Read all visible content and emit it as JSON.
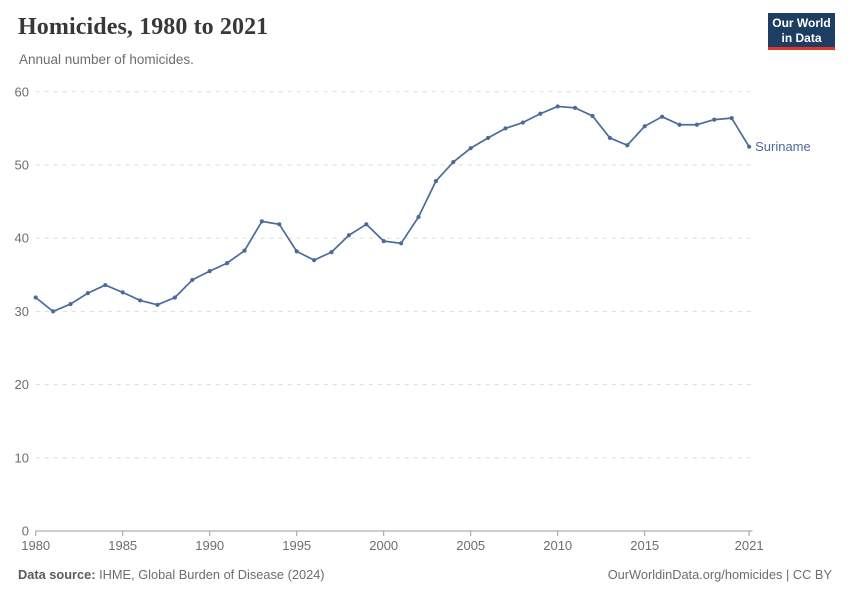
{
  "header": {
    "title": "Homicides, 1980 to 2021",
    "subtitle": "Annual number of homicides.",
    "logo": {
      "line1": "Our World",
      "line2": "in Data"
    }
  },
  "footer": {
    "datasource_label": "Data source:",
    "datasource_value": "IHME, Global Burden of Disease (2024)",
    "credit": "OurWorldinData.org/homicides | CC BY"
  },
  "colors": {
    "line": "#4c6a9c",
    "entity_label": "#4c6a9c",
    "grid": "#dcdcdc",
    "axis": "#9e9e9e",
    "tick_label": "#6e6e6e",
    "logo_bg": "#1d3d63",
    "logo_stripe": "#e0362d",
    "title": "#383838",
    "subtitle": "#6d6d6d"
  },
  "chart_data": {
    "type": "line",
    "title": "Homicides, 1980 to 2021",
    "subtitle": "Annual number of homicides.",
    "xlabel": "",
    "ylabel": "",
    "ylim": [
      0,
      60
    ],
    "yticks": [
      0,
      10,
      20,
      30,
      40,
      50,
      60
    ],
    "xticks": [
      1980,
      1985,
      1990,
      1995,
      2000,
      2005,
      2010,
      2015,
      2021
    ],
    "grid": "dashed-horizontal",
    "legend_position": "end-of-line-label",
    "series": [
      {
        "name": "Suriname",
        "x": [
          1980,
          1981,
          1982,
          1983,
          1984,
          1985,
          1986,
          1987,
          1988,
          1989,
          1990,
          1991,
          1992,
          1993,
          1994,
          1995,
          1996,
          1997,
          1998,
          1999,
          2000,
          2001,
          2002,
          2003,
          2004,
          2005,
          2006,
          2007,
          2008,
          2009,
          2010,
          2011,
          2012,
          2013,
          2014,
          2015,
          2016,
          2017,
          2018,
          2019,
          2020,
          2021
        ],
        "values": [
          31.9,
          30.0,
          31.0,
          32.5,
          33.6,
          32.6,
          31.5,
          30.9,
          31.9,
          34.3,
          35.5,
          36.6,
          38.3,
          42.3,
          41.9,
          38.2,
          37.0,
          38.1,
          40.4,
          41.9,
          39.6,
          39.3,
          42.9,
          47.8,
          50.4,
          52.3,
          53.7,
          55.0,
          55.8,
          57.0,
          58.0,
          57.8,
          56.7,
          53.7,
          52.7,
          55.3,
          56.6,
          55.5,
          55.5,
          56.2,
          56.4,
          52.5
        ]
      }
    ]
  }
}
